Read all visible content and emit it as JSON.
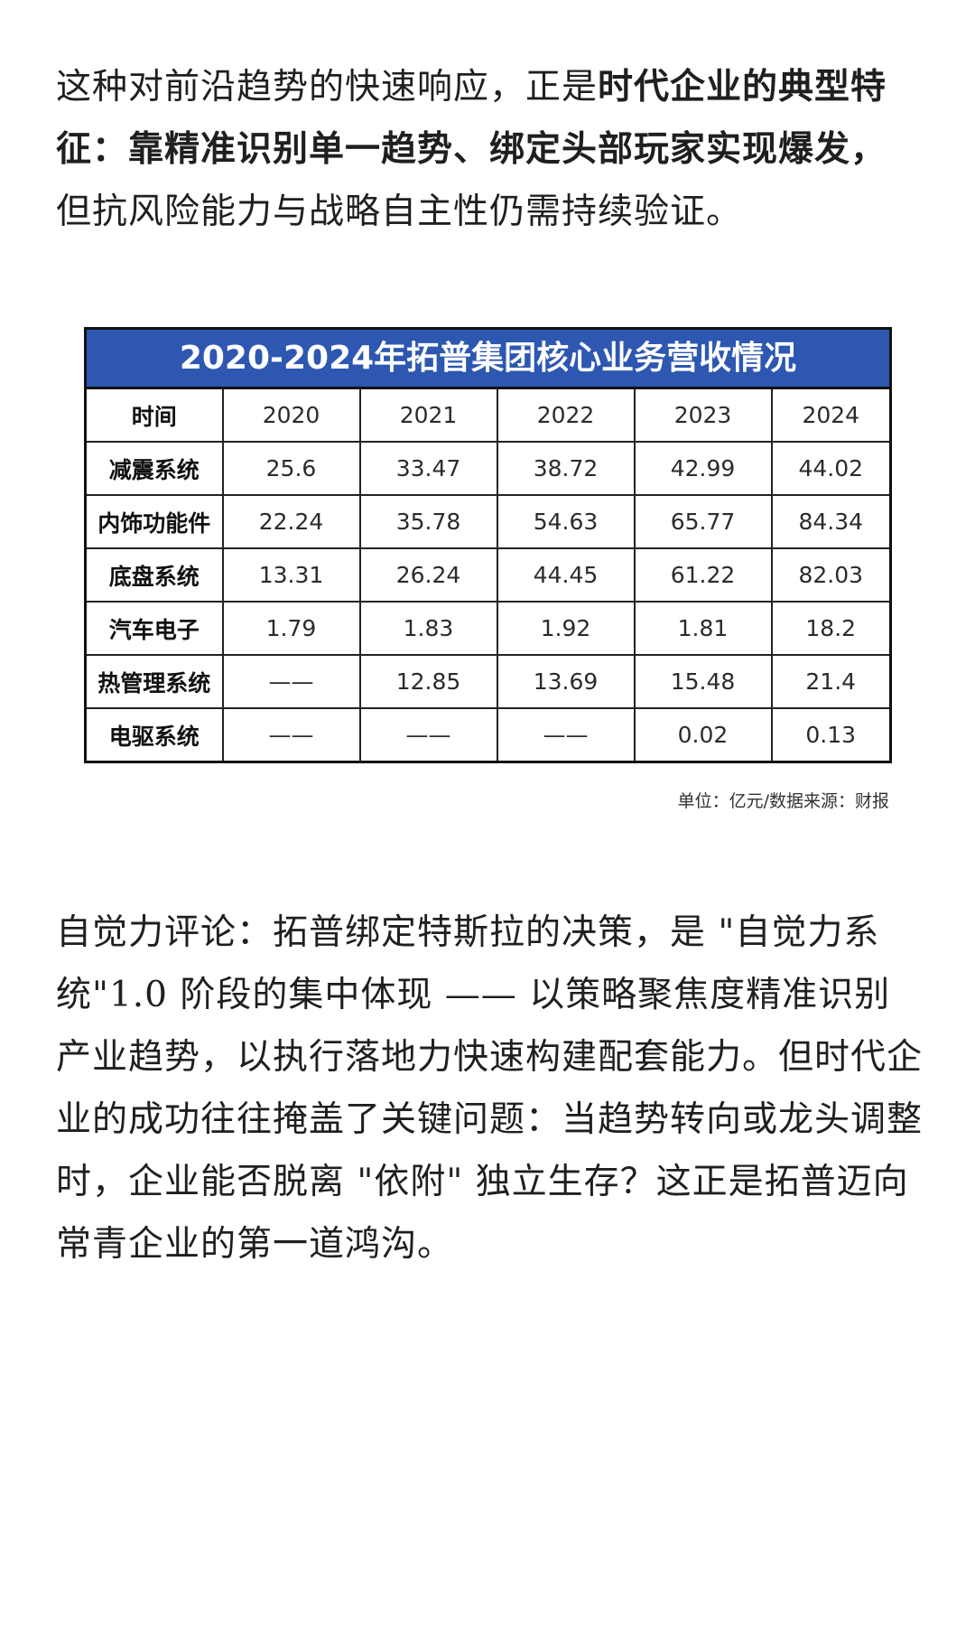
{
  "intro": {
    "text_a": "这种对前沿趋势的快速响应，正是",
    "text_b": "时代企业的典型特征：靠精准识别单一趋势、绑定头部玩家实现爆发，",
    "text_c": "但抗风险能力与战略自主性仍需持续验证。"
  },
  "table": {
    "title": "2020-2024年拓普集团核心业务营收情况",
    "corner_label": "时间",
    "years": [
      "2020",
      "2021",
      "2022",
      "2023",
      "2024"
    ],
    "rows": [
      {
        "name": "减震系统",
        "values": [
          "25.6",
          "33.47",
          "38.72",
          "42.99",
          "44.02"
        ]
      },
      {
        "name": "内饰功能件",
        "values": [
          "22.24",
          "35.78",
          "54.63",
          "65.77",
          "84.34"
        ]
      },
      {
        "name": "底盘系统",
        "values": [
          "13.31",
          "26.24",
          "44.45",
          "61.22",
          "82.03"
        ]
      },
      {
        "name": "汽车电子",
        "values": [
          "1.79",
          "1.83",
          "1.92",
          "1.81",
          "18.2"
        ]
      },
      {
        "name": "热管理系统",
        "values": [
          "——",
          "12.85",
          "13.69",
          "15.48",
          "21.4"
        ]
      },
      {
        "name": "电驱系统",
        "values": [
          "——",
          "——",
          "——",
          "0.02",
          "0.13"
        ]
      }
    ],
    "note": "单位：亿元/数据来源：财报"
  },
  "comment": {
    "text": "自觉力评论：拓普绑定特斯拉的决策，是 \"自觉力系统\"1.0 阶段的集中体现 —— 以策略聚焦度精准识别产业趋势，以执行落地力快速构建配套能力。但时代企业的成功往往掩盖了关键问题：当趋势转向或龙头调整时，企业能否脱离 \"依附\" 独立生存？这正是拓普迈向常青企业的第一道鸿沟。"
  },
  "colors": {
    "title_bar": "#2d57b0",
    "title_text": "#ffffff",
    "border": "#111111",
    "body_text": "#1f1f1f"
  }
}
